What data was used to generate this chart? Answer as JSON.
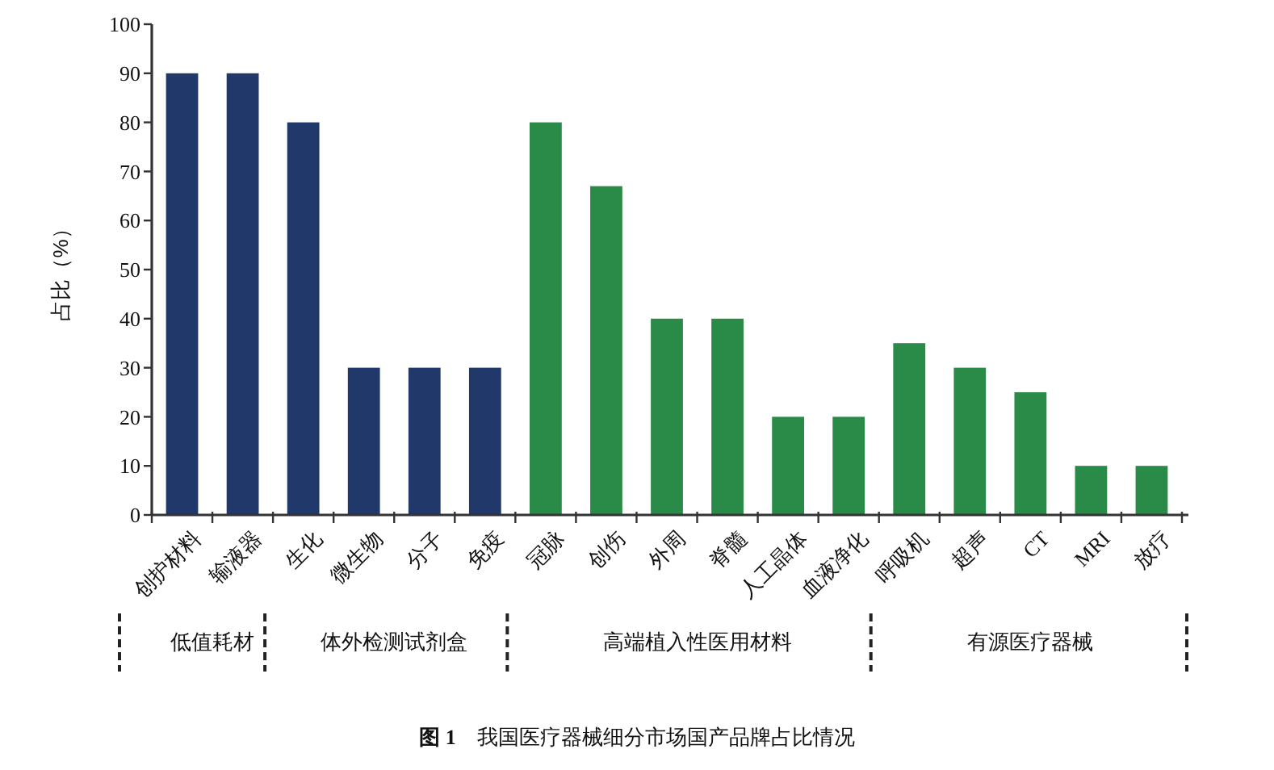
{
  "chart_data": {
    "type": "bar",
    "title": "图 1　我国医疗器械细分市场国产品牌占比情况",
    "ylabel": "占比（%）",
    "categories": [
      "创护材料",
      "输液器",
      "生化",
      "微生物",
      "分子",
      "免疫",
      "冠脉",
      "创伤",
      "外周",
      "脊髓",
      "人工晶体",
      "血液净化",
      "呼吸机",
      "超声",
      "CT",
      "MRI",
      "放疗"
    ],
    "values": [
      90,
      90,
      80,
      30,
      30,
      30,
      80,
      67,
      40,
      40,
      20,
      20,
      35,
      30,
      25,
      10,
      10
    ],
    "colors": [
      "#21396a",
      "#21396a",
      "#21396a",
      "#21396a",
      "#21396a",
      "#21396a",
      "#2a8a47",
      "#2a8a47",
      "#2a8a47",
      "#2a8a47",
      "#2a8a47",
      "#2a8a47",
      "#2a8a47",
      "#2a8a47",
      "#2a8a47",
      "#2a8a47",
      "#2a8a47"
    ],
    "ylim": [
      0,
      100
    ],
    "yticks": [
      0,
      10,
      20,
      30,
      40,
      50,
      60,
      70,
      80,
      90,
      100
    ],
    "annotations": [
      "低值耗材",
      "体外检测试剂盒",
      "高端植入性医用材料",
      "有源医疗器械"
    ]
  }
}
